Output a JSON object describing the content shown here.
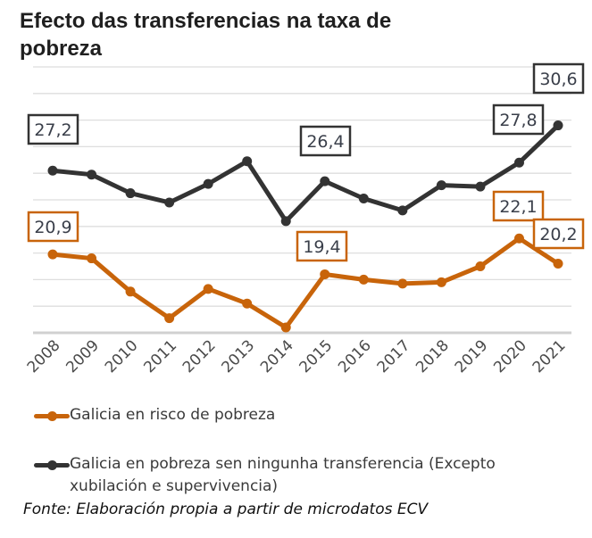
{
  "chart_data": {
    "type": "line",
    "title": "Efecto das transferencias na taxa de pobreza",
    "xlabel": "",
    "ylabel": "",
    "ylim": [
      15,
      35
    ],
    "grid": true,
    "legend_position": "bottom",
    "x": [
      "2008",
      "2009",
      "2010",
      "2011",
      "2012",
      "2013",
      "2014",
      "2015",
      "2016",
      "2017",
      "2018",
      "2019",
      "2020",
      "2021"
    ],
    "series": [
      {
        "name": "Galicia en risco de pobreza",
        "color": "#C8640A",
        "values": [
          20.9,
          20.6,
          18.1,
          16.1,
          18.3,
          17.2,
          15.4,
          19.4,
          19.0,
          18.7,
          18.8,
          20.0,
          22.1,
          20.2
        ],
        "labeled_points": [
          {
            "year": "2008",
            "label": "20,9"
          },
          {
            "year": "2015",
            "label": "19,4"
          },
          {
            "year": "2020",
            "label": "22,1"
          },
          {
            "year": "2021",
            "label": "20,2"
          }
        ]
      },
      {
        "name": "Galicia en pobreza sen ningunha transferencia (Excepto xubilación e supervivencia)",
        "color": "#333333",
        "values": [
          27.2,
          26.9,
          25.5,
          24.8,
          26.2,
          27.9,
          23.4,
          26.4,
          25.1,
          24.2,
          26.1,
          26.0,
          27.8,
          30.6
        ],
        "labeled_points": [
          {
            "year": "2008",
            "label": "27,2"
          },
          {
            "year": "2015",
            "label": "26,4"
          },
          {
            "year": "2020",
            "label": "27,8"
          },
          {
            "year": "2021",
            "label": "30,6"
          }
        ]
      }
    ],
    "source": "Fonte: Elaboración propia a partir de microdatos ECV"
  },
  "legend": {
    "items": [
      {
        "label": "Galicia en risco de pobreza",
        "color": "#C8640A"
      },
      {
        "label_line1": "Galicia en pobreza sen ningunha transferencia (Excepto",
        "label_line2": "xubilación e supervivencia)",
        "color": "#333333"
      }
    ]
  }
}
